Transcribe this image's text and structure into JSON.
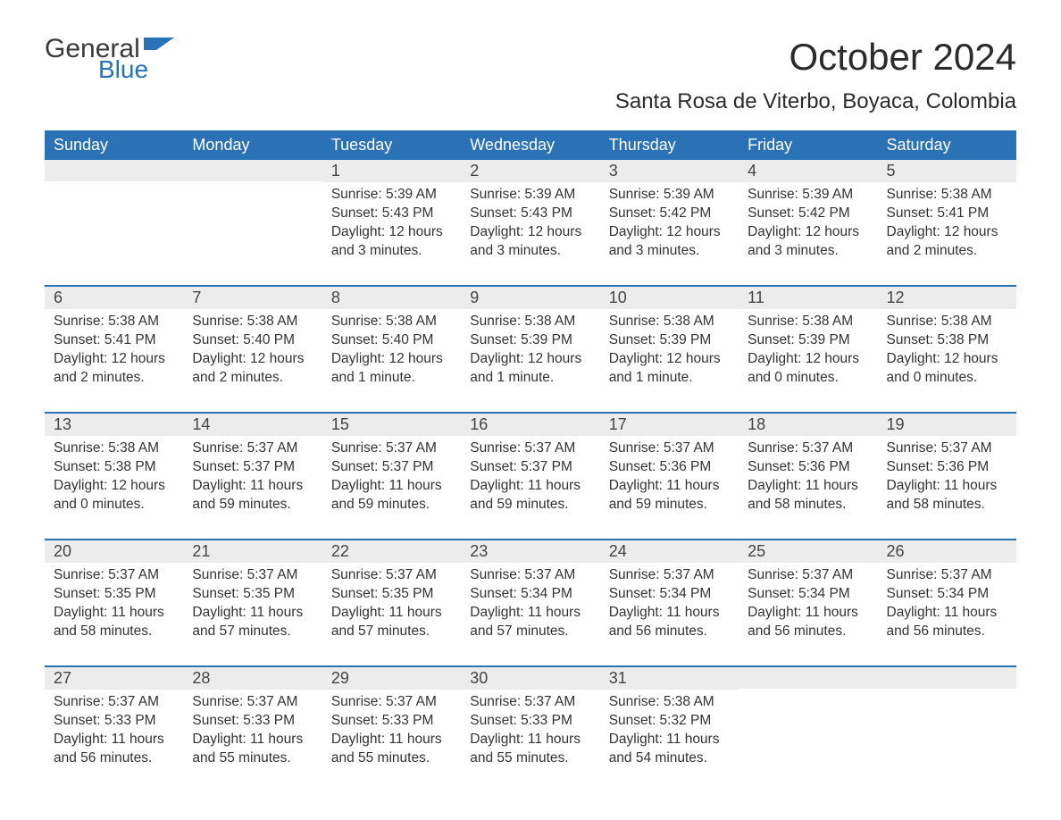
{
  "logo": {
    "text_general": "General",
    "text_blue": "Blue",
    "flag_color": "#2a72b5"
  },
  "header": {
    "month_title": "October 2024",
    "location": "Santa Rosa de Viterbo, Boyaca, Colombia"
  },
  "colors": {
    "header_bg": "#2a72b5",
    "header_text": "#ffffff",
    "daynum_bg": "#ececec",
    "body_text": "#333333",
    "week_border": "#2a72b5",
    "page_bg": "#ffffff"
  },
  "fonts": {
    "month_title_size_pt": 32,
    "location_size_pt": 18,
    "weekday_size_pt": 14,
    "daynum_size_pt": 14,
    "body_size_pt": 12
  },
  "weekdays": [
    "Sunday",
    "Monday",
    "Tuesday",
    "Wednesday",
    "Thursday",
    "Friday",
    "Saturday"
  ],
  "labels": {
    "sunrise": "Sunrise:",
    "sunset": "Sunset:",
    "daylight": "Daylight:"
  },
  "weeks": [
    [
      null,
      null,
      {
        "n": "1",
        "sunrise": "5:39 AM",
        "sunset": "5:43 PM",
        "dl1": "12 hours",
        "dl2": "and 3 minutes."
      },
      {
        "n": "2",
        "sunrise": "5:39 AM",
        "sunset": "5:43 PM",
        "dl1": "12 hours",
        "dl2": "and 3 minutes."
      },
      {
        "n": "3",
        "sunrise": "5:39 AM",
        "sunset": "5:42 PM",
        "dl1": "12 hours",
        "dl2": "and 3 minutes."
      },
      {
        "n": "4",
        "sunrise": "5:39 AM",
        "sunset": "5:42 PM",
        "dl1": "12 hours",
        "dl2": "and 3 minutes."
      },
      {
        "n": "5",
        "sunrise": "5:38 AM",
        "sunset": "5:41 PM",
        "dl1": "12 hours",
        "dl2": "and 2 minutes."
      }
    ],
    [
      {
        "n": "6",
        "sunrise": "5:38 AM",
        "sunset": "5:41 PM",
        "dl1": "12 hours",
        "dl2": "and 2 minutes."
      },
      {
        "n": "7",
        "sunrise": "5:38 AM",
        "sunset": "5:40 PM",
        "dl1": "12 hours",
        "dl2": "and 2 minutes."
      },
      {
        "n": "8",
        "sunrise": "5:38 AM",
        "sunset": "5:40 PM",
        "dl1": "12 hours",
        "dl2": "and 1 minute."
      },
      {
        "n": "9",
        "sunrise": "5:38 AM",
        "sunset": "5:39 PM",
        "dl1": "12 hours",
        "dl2": "and 1 minute."
      },
      {
        "n": "10",
        "sunrise": "5:38 AM",
        "sunset": "5:39 PM",
        "dl1": "12 hours",
        "dl2": "and 1 minute."
      },
      {
        "n": "11",
        "sunrise": "5:38 AM",
        "sunset": "5:39 PM",
        "dl1": "12 hours",
        "dl2": "and 0 minutes."
      },
      {
        "n": "12",
        "sunrise": "5:38 AM",
        "sunset": "5:38 PM",
        "dl1": "12 hours",
        "dl2": "and 0 minutes."
      }
    ],
    [
      {
        "n": "13",
        "sunrise": "5:38 AM",
        "sunset": "5:38 PM",
        "dl1": "12 hours",
        "dl2": "and 0 minutes."
      },
      {
        "n": "14",
        "sunrise": "5:37 AM",
        "sunset": "5:37 PM",
        "dl1": "11 hours",
        "dl2": "and 59 minutes."
      },
      {
        "n": "15",
        "sunrise": "5:37 AM",
        "sunset": "5:37 PM",
        "dl1": "11 hours",
        "dl2": "and 59 minutes."
      },
      {
        "n": "16",
        "sunrise": "5:37 AM",
        "sunset": "5:37 PM",
        "dl1": "11 hours",
        "dl2": "and 59 minutes."
      },
      {
        "n": "17",
        "sunrise": "5:37 AM",
        "sunset": "5:36 PM",
        "dl1": "11 hours",
        "dl2": "and 59 minutes."
      },
      {
        "n": "18",
        "sunrise": "5:37 AM",
        "sunset": "5:36 PM",
        "dl1": "11 hours",
        "dl2": "and 58 minutes."
      },
      {
        "n": "19",
        "sunrise": "5:37 AM",
        "sunset": "5:36 PM",
        "dl1": "11 hours",
        "dl2": "and 58 minutes."
      }
    ],
    [
      {
        "n": "20",
        "sunrise": "5:37 AM",
        "sunset": "5:35 PM",
        "dl1": "11 hours",
        "dl2": "and 58 minutes."
      },
      {
        "n": "21",
        "sunrise": "5:37 AM",
        "sunset": "5:35 PM",
        "dl1": "11 hours",
        "dl2": "and 57 minutes."
      },
      {
        "n": "22",
        "sunrise": "5:37 AM",
        "sunset": "5:35 PM",
        "dl1": "11 hours",
        "dl2": "and 57 minutes."
      },
      {
        "n": "23",
        "sunrise": "5:37 AM",
        "sunset": "5:34 PM",
        "dl1": "11 hours",
        "dl2": "and 57 minutes."
      },
      {
        "n": "24",
        "sunrise": "5:37 AM",
        "sunset": "5:34 PM",
        "dl1": "11 hours",
        "dl2": "and 56 minutes."
      },
      {
        "n": "25",
        "sunrise": "5:37 AM",
        "sunset": "5:34 PM",
        "dl1": "11 hours",
        "dl2": "and 56 minutes."
      },
      {
        "n": "26",
        "sunrise": "5:37 AM",
        "sunset": "5:34 PM",
        "dl1": "11 hours",
        "dl2": "and 56 minutes."
      }
    ],
    [
      {
        "n": "27",
        "sunrise": "5:37 AM",
        "sunset": "5:33 PM",
        "dl1": "11 hours",
        "dl2": "and 56 minutes."
      },
      {
        "n": "28",
        "sunrise": "5:37 AM",
        "sunset": "5:33 PM",
        "dl1": "11 hours",
        "dl2": "and 55 minutes."
      },
      {
        "n": "29",
        "sunrise": "5:37 AM",
        "sunset": "5:33 PM",
        "dl1": "11 hours",
        "dl2": "and 55 minutes."
      },
      {
        "n": "30",
        "sunrise": "5:37 AM",
        "sunset": "5:33 PM",
        "dl1": "11 hours",
        "dl2": "and 55 minutes."
      },
      {
        "n": "31",
        "sunrise": "5:38 AM",
        "sunset": "5:32 PM",
        "dl1": "11 hours",
        "dl2": "and 54 minutes."
      },
      null,
      null
    ]
  ]
}
